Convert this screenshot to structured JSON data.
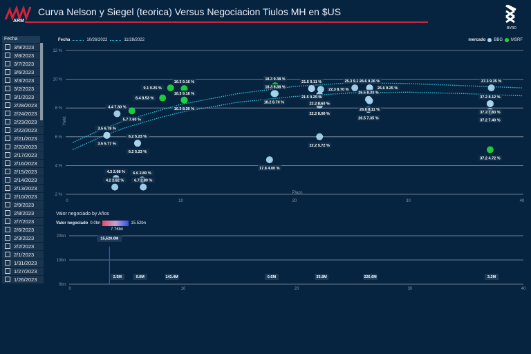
{
  "header": {
    "title": "Curva Nelson y Siegel (teorica) Versus Negociacion Tiulos MH en $US",
    "logo_text": "ARM",
    "brand_text": "BVRD"
  },
  "slicer": {
    "title": "Fecha",
    "items": [
      "3/9/2023",
      "3/8/2023",
      "3/7/2023",
      "3/6/2023",
      "3/3/2023",
      "3/2/2023",
      "3/1/2023",
      "2/28/2023",
      "2/24/2023",
      "2/23/2023",
      "2/22/2023",
      "2/21/2023",
      "2/20/2023",
      "2/17/2023",
      "2/16/2023",
      "2/15/2023",
      "2/14/2023",
      "2/13/2023",
      "2/10/2023",
      "2/9/2023",
      "2/8/2023",
      "2/7/2023",
      "2/6/2023",
      "2/3/2023",
      "2/2/2023",
      "2/1/2023",
      "1/31/2023",
      "1/27/2023",
      "1/26/2023",
      "1/25/2023",
      "1/24/2023"
    ]
  },
  "legend": {
    "fecha_label": "Fecha",
    "series": [
      "10/26/2022",
      "11/28/2022"
    ],
    "mercado_label": "mercado",
    "markets": [
      "BBG",
      "MSRF"
    ]
  },
  "colors": {
    "bbg": "#a8d4ec",
    "msrf": "#1ed43a",
    "curve": "#2fc0d8",
    "bar": "#2e52e8",
    "title_line": "#d0243a"
  },
  "chart_data": [
    {
      "type": "scatter",
      "title": "Curva Nelson y Siegel",
      "xlabel": "Plazo",
      "ylabel": "Yield",
      "xlim": [
        0,
        40
      ],
      "ylim": [
        2,
        12
      ],
      "x_ticks": [
        "0",
        "10",
        "20",
        "30",
        "40"
      ],
      "y_ticks": [
        "2 %",
        "4 %",
        "6 %",
        "8 %",
        "10 %",
        "12 %"
      ],
      "curves": [
        {
          "name": "10/26/2022",
          "x": [
            0.5,
            3,
            5,
            8,
            10,
            15,
            20,
            25,
            30,
            35,
            40
          ],
          "y": [
            5.6,
            6.5,
            7.1,
            7.8,
            8.25,
            9.0,
            9.5,
            9.75,
            9.7,
            9.55,
            9.4
          ]
        },
        {
          "name": "11/28/2022",
          "x": [
            0.5,
            3,
            5,
            8,
            10,
            15,
            20,
            25,
            30,
            35,
            40
          ],
          "y": [
            5.1,
            6.0,
            6.6,
            7.3,
            7.7,
            8.4,
            8.8,
            9.05,
            9.1,
            9.0,
            8.85
          ]
        }
      ],
      "points": [
        {
          "m": "BBG",
          "x": 3.5,
          "y": 6.1,
          "label": "3.5 6.78 %",
          "pos": "up"
        },
        {
          "m": "BBG",
          "x": 3.5,
          "y": 6.1,
          "label": "3.5 5.77 %",
          "pos": "down"
        },
        {
          "m": "BBG",
          "x": 4.4,
          "y": 7.6,
          "label": "4.4 7.30 %",
          "pos": "up"
        },
        {
          "m": "MSRF",
          "x": 5.7,
          "y": 7.8,
          "label": "5.7 7.60 %",
          "pos": "down"
        },
        {
          "m": "BBG",
          "x": 6.2,
          "y": 5.55,
          "label": "6.2 5.23 %",
          "pos": "up"
        },
        {
          "m": "BBG",
          "x": 6.2,
          "y": 5.55,
          "label": "6.2 5.23 %",
          "pos": "down"
        },
        {
          "m": "BBG",
          "x": 4.3,
          "y": 3.1,
          "label": "4.3 2.68 %",
          "pos": "up"
        },
        {
          "m": "BBG",
          "x": 4.2,
          "y": 2.5,
          "label": "4.2 2.62 %",
          "pos": "up"
        },
        {
          "m": "BBG",
          "x": 6.6,
          "y": 3.0,
          "label": "6.6 2.80 %",
          "pos": "up"
        },
        {
          "m": "BBG",
          "x": 6.7,
          "y": 2.5,
          "label": "6.7 2.80 %",
          "pos": "up"
        },
        {
          "m": "MSRF",
          "x": 8.4,
          "y": 8.7,
          "label": "8.4 8.53 %",
          "pos": "left"
        },
        {
          "m": "MSRF",
          "x": 9.1,
          "y": 9.4,
          "label": "9.1 9.25 %",
          "pos": "left"
        },
        {
          "m": "MSRF",
          "x": 10.3,
          "y": 9.35,
          "label": "10.3 9.16 %",
          "pos": "up"
        },
        {
          "m": "MSRF",
          "x": 10.3,
          "y": 8.55,
          "label": "10.3 9.16 %",
          "pos": "up"
        },
        {
          "m": "MSRF",
          "x": 10.3,
          "y": 8.55,
          "label": "10.3 8.30 %",
          "pos": "down"
        },
        {
          "m": "BBG",
          "x": 17.8,
          "y": 4.4,
          "label": "17.8 4.00 %",
          "pos": "down"
        },
        {
          "m": "BBG",
          "x": 18.2,
          "y": 9.0,
          "label": "18.2 8.70 %",
          "pos": "down"
        },
        {
          "m": "MSRF",
          "x": 18.3,
          "y": 9.55,
          "label": "18.3 9.38 %",
          "pos": "up"
        },
        {
          "m": "BBG",
          "x": 18.3,
          "y": 9.0,
          "label": "18.3 9.38 %",
          "pos": "up"
        },
        {
          "m": "BBG",
          "x": 21.5,
          "y": 9.35,
          "label": "21.5 9.11 %",
          "pos": "up"
        },
        {
          "m": "BBG",
          "x": 21.5,
          "y": 9.35,
          "label": "21.5 9.25 %",
          "pos": "down"
        },
        {
          "m": "BBG",
          "x": 22.3,
          "y": 9.3,
          "label": "22.3 8.70 %",
          "pos": "right"
        },
        {
          "m": "BBG",
          "x": 22.2,
          "y": 8.9,
          "label": "22.2 8.60 %",
          "pos": "down"
        },
        {
          "m": "BBG",
          "x": 22.2,
          "y": 8.2,
          "label": "22.2 8.00 %",
          "pos": "down"
        },
        {
          "m": "BBG",
          "x": 22.2,
          "y": 6.0,
          "label": "22.2 5.72 %",
          "pos": "down"
        },
        {
          "m": "BBG",
          "x": 25.3,
          "y": 9.4,
          "label": "25.3 9.25 %",
          "pos": "up"
        },
        {
          "m": "BBG",
          "x": 26.6,
          "y": 9.4,
          "label": "26.6 9.26 %",
          "pos": "up"
        },
        {
          "m": "BBG",
          "x": 26.6,
          "y": 9.4,
          "label": "26.6 9.25 %",
          "pos": "right"
        },
        {
          "m": "BBG",
          "x": 26.5,
          "y": 8.6,
          "label": "26.5 8.33 %",
          "pos": "up"
        },
        {
          "m": "BBG",
          "x": 26.6,
          "y": 8.5,
          "label": "26.6 8.11 %",
          "pos": "down"
        },
        {
          "m": "BBG",
          "x": 26.5,
          "y": 7.9,
          "label": "26.5 7.35 %",
          "pos": "down"
        },
        {
          "m": "BBG",
          "x": 37.3,
          "y": 9.4,
          "label": "37.3 9.35 %",
          "pos": "up"
        },
        {
          "m": "BBG",
          "x": 37.2,
          "y": 8.3,
          "label": "37.2 8.12 %",
          "pos": "up"
        },
        {
          "m": "BBG",
          "x": 37.2,
          "y": 8.3,
          "label": "37.2 7.83 %",
          "pos": "down"
        },
        {
          "m": "BBG",
          "x": 37.2,
          "y": 7.75,
          "label": "37.2 7.40 %",
          "pos": "down"
        },
        {
          "m": "MSRF",
          "x": 37.2,
          "y": 5.1,
          "label": "37.2 4.72 %",
          "pos": "down"
        }
      ]
    },
    {
      "type": "bar",
      "title": "Valor negociado by Años",
      "legend_label": "Valor negociado",
      "legend_min": "0.0bn",
      "legend_mid": "7.76bn",
      "legend_max": "15.52bn",
      "xlim": [
        0,
        40
      ],
      "ylim": [
        0,
        20000
      ],
      "x_ticks": [
        "0",
        "10",
        "20",
        "30",
        "40"
      ],
      "y_ticks": [
        "0bn",
        "10bn",
        "20bn"
      ],
      "x": [
        3.5,
        4.2,
        6.2,
        9.0,
        17.8,
        22.2,
        26.5,
        37.2
      ],
      "values": [
        15520.0,
        2.5,
        0.0,
        141.4,
        0.6,
        35.8,
        226.6,
        3.2
      ],
      "labels": [
        "15,520.0M",
        "2.5M",
        "0.0M",
        "141.4M",
        "0.6M",
        "35.8M",
        "226.6M",
        "3.2M"
      ]
    }
  ]
}
